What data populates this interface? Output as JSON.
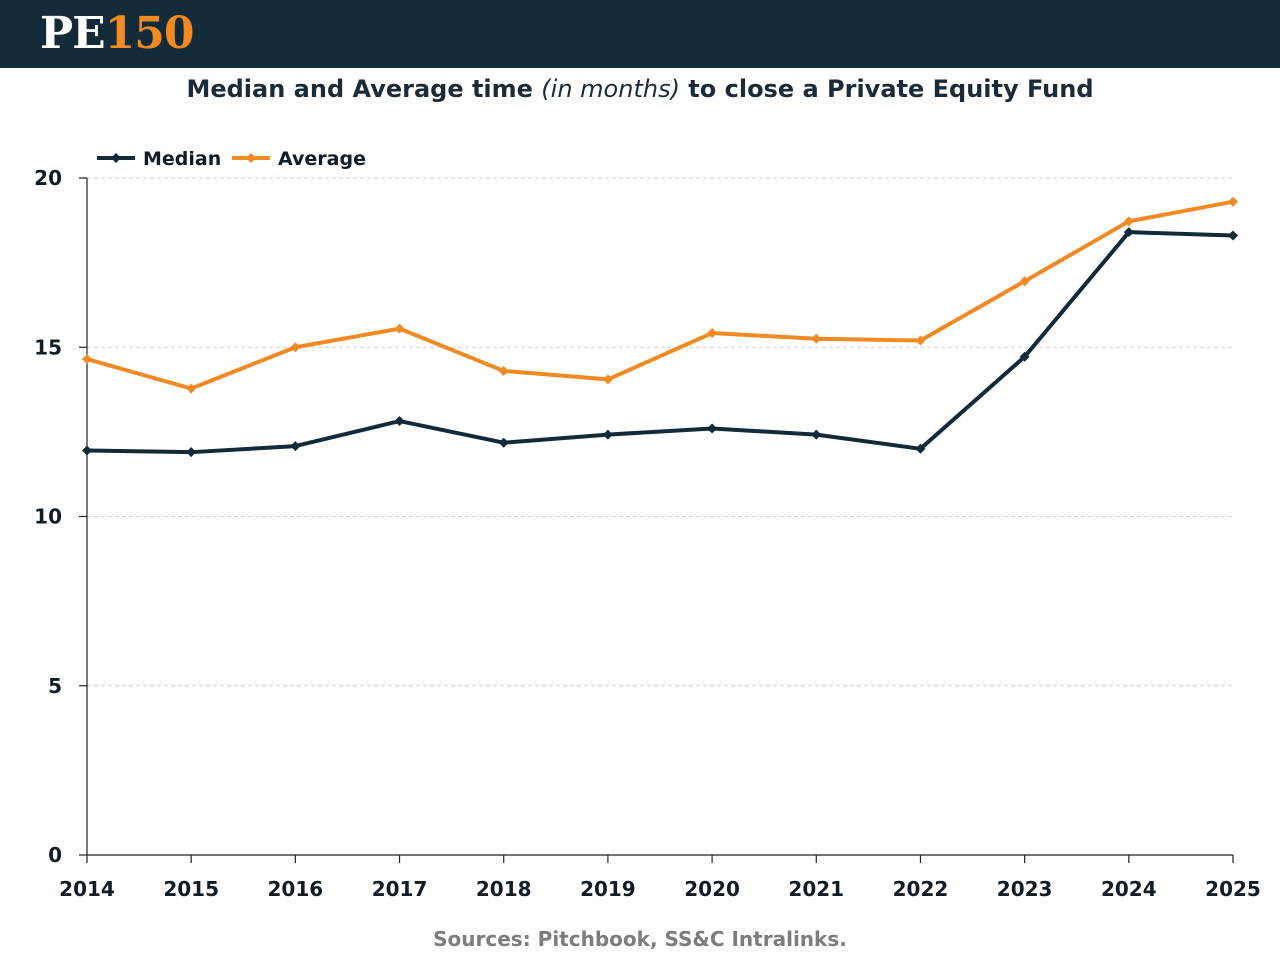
{
  "brand": {
    "prefix": "PE",
    "number": "150"
  },
  "title": {
    "part1": "Median and Average time ",
    "part2": "(in months)",
    "part3": " to close a Private Equity Fund"
  },
  "source": "Sources: Pitchbook, SS&C Intralinks.",
  "colors": {
    "header": "#132a38",
    "median": "#132a38",
    "average": "#f28a23",
    "grid": "#d0d0d0"
  },
  "chart_data": {
    "type": "line",
    "title": "Median and Average time (in months) to close a Private Equity Fund",
    "xlabel": "",
    "ylabel": "",
    "x": [
      "2014",
      "2015",
      "2016",
      "2017",
      "2018",
      "2019",
      "2020",
      "2021",
      "2022",
      "2023",
      "2024",
      "2025"
    ],
    "ylim": [
      0,
      20
    ],
    "yticks": [
      0,
      5,
      10,
      15,
      20
    ],
    "grid": "horizontal dashed",
    "legend": "top-left",
    "series": [
      {
        "name": "Median",
        "color": "#132a38",
        "values": [
          11.95,
          11.9,
          12.08,
          12.82,
          12.18,
          12.42,
          12.6,
          12.42,
          12.0,
          14.72,
          18.4,
          18.3
        ]
      },
      {
        "name": "Average",
        "color": "#f28a23",
        "values": [
          14.65,
          13.78,
          15.0,
          15.55,
          14.3,
          14.05,
          15.42,
          15.25,
          15.2,
          16.95,
          18.72,
          19.3
        ]
      }
    ]
  }
}
